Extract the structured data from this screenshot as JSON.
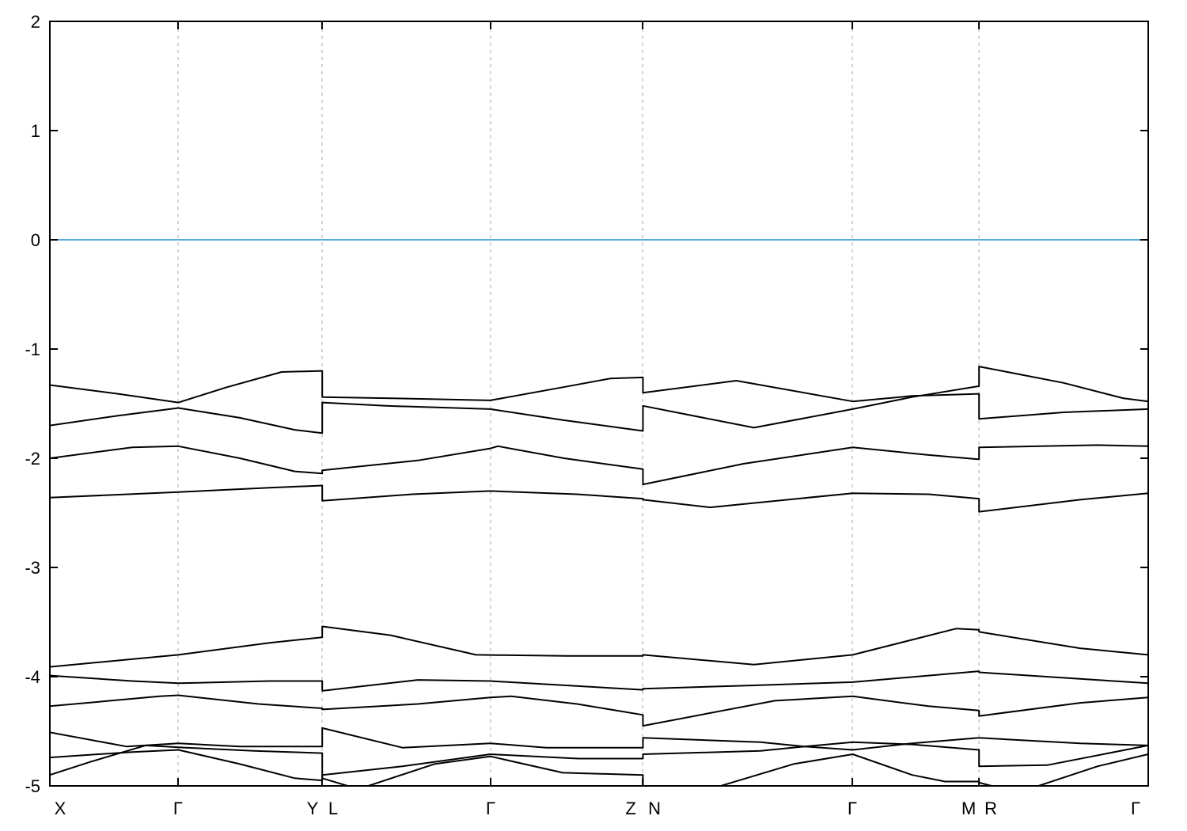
{
  "figure": {
    "background_color": "#ffffff",
    "title": ""
  },
  "chart_data": {
    "type": "line",
    "title": "",
    "xlabel": "",
    "ylabel": "",
    "description": "Electronic band structure along the high-symmetry k-path X-G-Y | L-G-Z | N-G-M | R-G with a horizontal Fermi level line at 0",
    "ylim": [
      -5,
      2
    ],
    "grid": "vertical-dashed-at-symmetry-points",
    "legend_position": "none",
    "y_ticks": [
      {
        "value": 2,
        "label": "2"
      },
      {
        "value": 1,
        "label": "1"
      },
      {
        "value": 0,
        "label": "0"
      },
      {
        "value": -1,
        "label": "-1"
      },
      {
        "value": -2,
        "label": "-2"
      },
      {
        "value": -3,
        "label": "-3"
      },
      {
        "value": -4,
        "label": "-4"
      },
      {
        "value": -5,
        "label": "-5"
      }
    ],
    "x_tick_labels": [
      {
        "label": "X",
        "k": 0.0,
        "dx": 13
      },
      {
        "label": "Γ",
        "k": 0.1167,
        "dx": 0
      },
      {
        "label": "Y",
        "k": 0.2478,
        "dx": -12
      },
      {
        "label": "L",
        "k": 0.2478,
        "dx": 14
      },
      {
        "label": "Γ",
        "k": 0.4013,
        "dx": 0
      },
      {
        "label": "Z",
        "k": 0.5397,
        "dx": -15
      },
      {
        "label": "N",
        "k": 0.5397,
        "dx": 15
      },
      {
        "label": "Γ",
        "k": 0.7306,
        "dx": 0
      },
      {
        "label": "M",
        "k": 0.8459,
        "dx": -13
      },
      {
        "label": "R",
        "k": 0.8459,
        "dx": 15
      },
      {
        "label": "Γ",
        "k": 1.0,
        "dx": -16
      }
    ],
    "gridlines_k": [
      0.1167,
      0.2478,
      0.4013,
      0.5397,
      0.7306,
      0.8459
    ],
    "fermi_level": 0,
    "colors": {
      "band": "#000000",
      "fermi_line": "#58acdc",
      "grid": "#a8a8a8",
      "axis": "#000000"
    },
    "bands": [
      {
        "name": "band-1",
        "points": [
          [
            0,
            -1.33
          ],
          [
            0.062,
            -1.41
          ],
          [
            0.117,
            -1.49
          ],
          [
            0.161,
            -1.35
          ],
          [
            0.211,
            -1.21
          ],
          [
            0.248,
            -1.2
          ],
          [
            0.248,
            -1.44
          ],
          [
            0.306,
            -1.45
          ],
          [
            0.401,
            -1.47
          ],
          [
            0.467,
            -1.35
          ],
          [
            0.51,
            -1.27
          ],
          [
            0.54,
            -1.26
          ],
          [
            0.54,
            -1.4
          ],
          [
            0.625,
            -1.29
          ],
          [
            0.731,
            -1.48
          ],
          [
            0.785,
            -1.43
          ],
          [
            0.846,
            -1.41
          ],
          [
            0.846,
            -1.64
          ],
          [
            0.923,
            -1.58
          ],
          [
            1,
            -1.55
          ]
        ]
      },
      {
        "name": "band-2",
        "points": [
          [
            0,
            -1.7
          ],
          [
            0.062,
            -1.61
          ],
          [
            0.117,
            -1.54
          ],
          [
            0.173,
            -1.63
          ],
          [
            0.223,
            -1.74
          ],
          [
            0.248,
            -1.77
          ],
          [
            0.248,
            -1.49
          ],
          [
            0.306,
            -1.52
          ],
          [
            0.401,
            -1.55
          ],
          [
            0.467,
            -1.65
          ],
          [
            0.54,
            -1.75
          ],
          [
            0.54,
            -1.52
          ],
          [
            0.641,
            -1.72
          ],
          [
            0.731,
            -1.55
          ],
          [
            0.785,
            -1.44
          ],
          [
            0.846,
            -1.34
          ],
          [
            0.846,
            -1.16
          ],
          [
            0.923,
            -1.31
          ],
          [
            0.977,
            -1.45
          ],
          [
            1,
            -1.48
          ]
        ]
      },
      {
        "name": "band-3",
        "points": [
          [
            0,
            -2.0
          ],
          [
            0.075,
            -1.9
          ],
          [
            0.117,
            -1.89
          ],
          [
            0.173,
            -2.0
          ],
          [
            0.223,
            -2.12
          ],
          [
            0.248,
            -2.14
          ],
          [
            0.248,
            -2.11
          ],
          [
            0.335,
            -2.02
          ],
          [
            0.401,
            -1.91
          ],
          [
            0.408,
            -1.89
          ],
          [
            0.468,
            -2.0
          ],
          [
            0.54,
            -2.1
          ],
          [
            0.54,
            -2.24
          ],
          [
            0.632,
            -2.05
          ],
          [
            0.731,
            -1.9
          ],
          [
            0.8,
            -1.97
          ],
          [
            0.846,
            -2.01
          ],
          [
            0.846,
            -1.9
          ],
          [
            0.954,
            -1.88
          ],
          [
            1,
            -1.89
          ]
        ]
      },
      {
        "name": "band-4",
        "points": [
          [
            0,
            -2.36
          ],
          [
            0.117,
            -2.31
          ],
          [
            0.2,
            -2.27
          ],
          [
            0.248,
            -2.25
          ],
          [
            0.248,
            -2.39
          ],
          [
            0.33,
            -2.33
          ],
          [
            0.401,
            -2.3
          ],
          [
            0.48,
            -2.33
          ],
          [
            0.54,
            -2.37
          ],
          [
            0.54,
            -2.38
          ],
          [
            0.601,
            -2.45
          ],
          [
            0.731,
            -2.32
          ],
          [
            0.8,
            -2.33
          ],
          [
            0.846,
            -2.37
          ],
          [
            0.846,
            -2.49
          ],
          [
            0.938,
            -2.38
          ],
          [
            1,
            -2.32
          ]
        ]
      },
      {
        "name": "band-5",
        "points": [
          [
            0,
            -3.91
          ],
          [
            0.117,
            -3.8
          ],
          [
            0.2,
            -3.69
          ],
          [
            0.248,
            -3.64
          ],
          [
            0.248,
            -3.54
          ],
          [
            0.31,
            -3.62
          ],
          [
            0.388,
            -3.8
          ],
          [
            0.47,
            -3.81
          ],
          [
            0.54,
            -3.81
          ],
          [
            0.54,
            -3.8
          ],
          [
            0.641,
            -3.89
          ],
          [
            0.731,
            -3.8
          ],
          [
            0.825,
            -3.56
          ],
          [
            0.846,
            -3.57
          ],
          [
            0.846,
            -3.59
          ],
          [
            0.938,
            -3.74
          ],
          [
            1,
            -3.8
          ]
        ]
      },
      {
        "name": "band-6",
        "points": [
          [
            0,
            -3.99
          ],
          [
            0.075,
            -4.04
          ],
          [
            0.117,
            -4.06
          ],
          [
            0.2,
            -4.04
          ],
          [
            0.248,
            -4.04
          ],
          [
            0.248,
            -4.13
          ],
          [
            0.335,
            -4.03
          ],
          [
            0.401,
            -4.04
          ],
          [
            0.54,
            -4.12
          ],
          [
            0.54,
            -4.11
          ],
          [
            0.641,
            -4.08
          ],
          [
            0.731,
            -4.05
          ],
          [
            0.846,
            -3.95
          ],
          [
            0.846,
            -3.96
          ],
          [
            0.938,
            -4.02
          ],
          [
            1,
            -4.06
          ]
        ]
      },
      {
        "name": "band-7",
        "points": [
          [
            0,
            -4.27
          ],
          [
            0.1,
            -4.18
          ],
          [
            0.117,
            -4.17
          ],
          [
            0.19,
            -4.25
          ],
          [
            0.248,
            -4.29
          ],
          [
            0.248,
            -4.3
          ],
          [
            0.335,
            -4.25
          ],
          [
            0.401,
            -4.19
          ],
          [
            0.42,
            -4.18
          ],
          [
            0.48,
            -4.25
          ],
          [
            0.54,
            -4.35
          ],
          [
            0.54,
            -4.45
          ],
          [
            0.66,
            -4.22
          ],
          [
            0.731,
            -4.18
          ],
          [
            0.8,
            -4.27
          ],
          [
            0.846,
            -4.31
          ],
          [
            0.846,
            -4.36
          ],
          [
            0.938,
            -4.24
          ],
          [
            1,
            -4.19
          ]
        ]
      },
      {
        "name": "band-8",
        "points": [
          [
            0,
            -4.51
          ],
          [
            0.07,
            -4.64
          ],
          [
            0.117,
            -4.61
          ],
          [
            0.173,
            -4.64
          ],
          [
            0.248,
            -4.64
          ],
          [
            0.248,
            -4.47
          ],
          [
            0.321,
            -4.65
          ],
          [
            0.401,
            -4.61
          ],
          [
            0.452,
            -4.65
          ],
          [
            0.54,
            -4.65
          ],
          [
            0.54,
            -4.56
          ],
          [
            0.647,
            -4.6
          ],
          [
            0.687,
            -4.64
          ],
          [
            0.731,
            -4.67
          ],
          [
            0.785,
            -4.61
          ],
          [
            0.846,
            -4.56
          ],
          [
            0.938,
            -4.61
          ],
          [
            1,
            -4.63
          ]
        ]
      },
      {
        "name": "band-9",
        "points": [
          [
            0,
            -4.74
          ],
          [
            0.075,
            -4.69
          ],
          [
            0.117,
            -4.67
          ],
          [
            0.173,
            -4.8
          ],
          [
            0.223,
            -4.93
          ],
          [
            0.248,
            -4.95
          ],
          [
            0.248,
            -4.9
          ],
          [
            0.321,
            -4.82
          ],
          [
            0.401,
            -4.71
          ],
          [
            0.481,
            -4.75
          ],
          [
            0.54,
            -4.75
          ],
          [
            0.54,
            -4.71
          ],
          [
            0.647,
            -4.68
          ],
          [
            0.687,
            -4.64
          ],
          [
            0.731,
            -4.6
          ],
          [
            0.785,
            -4.62
          ],
          [
            0.846,
            -4.67
          ],
          [
            0.846,
            -4.82
          ],
          [
            0.908,
            -4.81
          ],
          [
            1,
            -4.63
          ]
        ]
      },
      {
        "name": "band-10",
        "points": [
          [
            0,
            -4.9
          ],
          [
            0.037,
            -4.78
          ],
          [
            0.087,
            -4.63
          ],
          [
            0.124,
            -4.65
          ],
          [
            0.186,
            -4.68
          ],
          [
            0.248,
            -4.7
          ],
          [
            0.248,
            -4.93
          ],
          [
            0.281,
            -5.03
          ],
          [
            0.35,
            -4.8
          ],
          [
            0.401,
            -4.73
          ],
          [
            0.467,
            -4.88
          ],
          [
            0.54,
            -4.9
          ],
          [
            0.54,
            -5.04
          ],
          [
            0.604,
            -5.02
          ],
          [
            0.677,
            -4.8
          ],
          [
            0.731,
            -4.71
          ],
          [
            0.785,
            -4.9
          ],
          [
            0.815,
            -4.96
          ],
          [
            0.846,
            -4.96
          ],
          [
            0.846,
            -4.97
          ],
          [
            0.869,
            -5.03
          ],
          [
            0.897,
            -5.01
          ],
          [
            0.954,
            -4.82
          ],
          [
            1,
            -4.71
          ]
        ]
      }
    ]
  }
}
